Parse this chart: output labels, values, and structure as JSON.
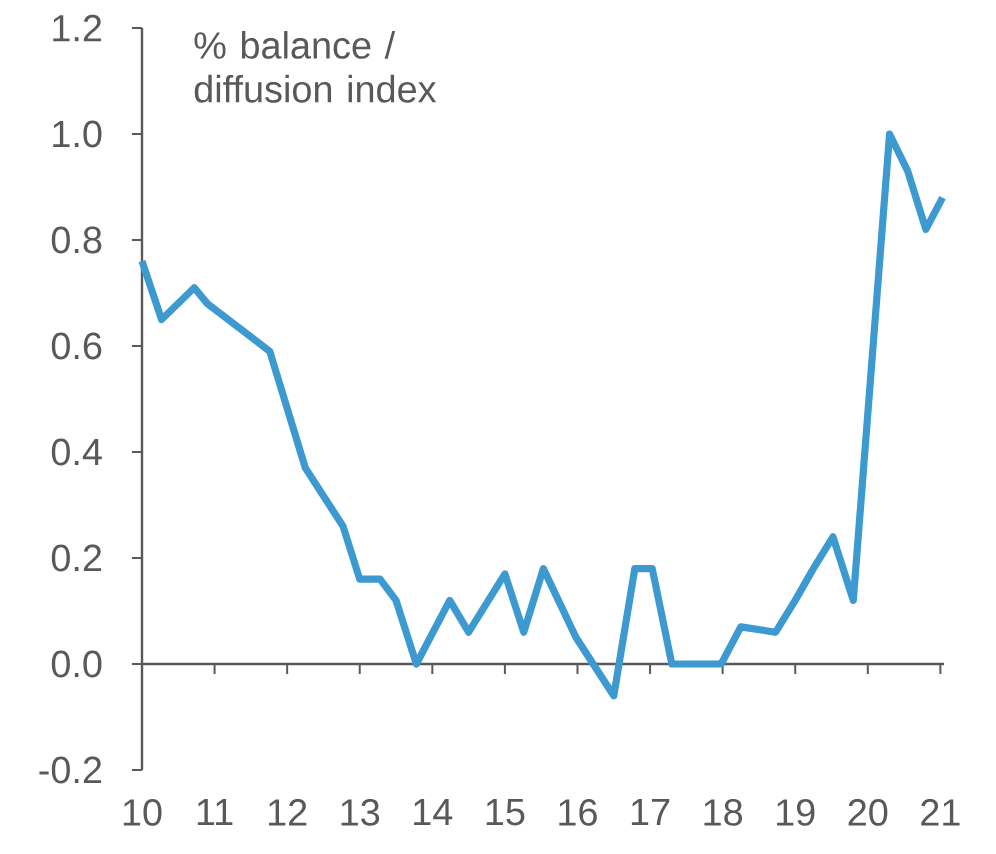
{
  "chart_data": {
    "type": "line",
    "ylabel": "% balance / diffusion index",
    "x": [
      10,
      10.27,
      10.72,
      10.9,
      11.76,
      12.25,
      12.77,
      13.0,
      13.28,
      13.5,
      13.78,
      14.24,
      14.5,
      15.0,
      15.26,
      15.53,
      15.98,
      16.5,
      16.79,
      17.03,
      17.3,
      17.98,
      18.25,
      18.73,
      19.0,
      19.25,
      19.52,
      19.8,
      20.3,
      20.55,
      20.8,
      21.03
    ],
    "series": [
      {
        "color": "#3d9ad1",
        "values": [
          0.76,
          0.65,
          0.71,
          0.68,
          0.59,
          0.37,
          0.26,
          0.16,
          0.16,
          0.12,
          0.0,
          0.12,
          0.06,
          0.17,
          0.06,
          0.18,
          0.05,
          -0.06,
          0.18,
          0.18,
          0.0,
          0.0,
          0.07,
          0.06,
          0.12,
          0.18,
          0.24,
          0.12,
          1.0,
          0.93,
          0.82,
          0.88
        ]
      }
    ],
    "xlim": [
      10,
      21.05
    ],
    "xticks": [
      10,
      11,
      12,
      13,
      14,
      15,
      16,
      17,
      18,
      19,
      20,
      21
    ],
    "ylim": [
      -0.2,
      1.2
    ],
    "yticks": [
      -0.2,
      {
        "value": 0,
        "label": "0.0"
      },
      0.2,
      0.4,
      0.6,
      0.8,
      {
        "value": 1,
        "label": "1.0"
      },
      1.2
    ],
    "marker": "none",
    "line_style": "solid"
  }
}
